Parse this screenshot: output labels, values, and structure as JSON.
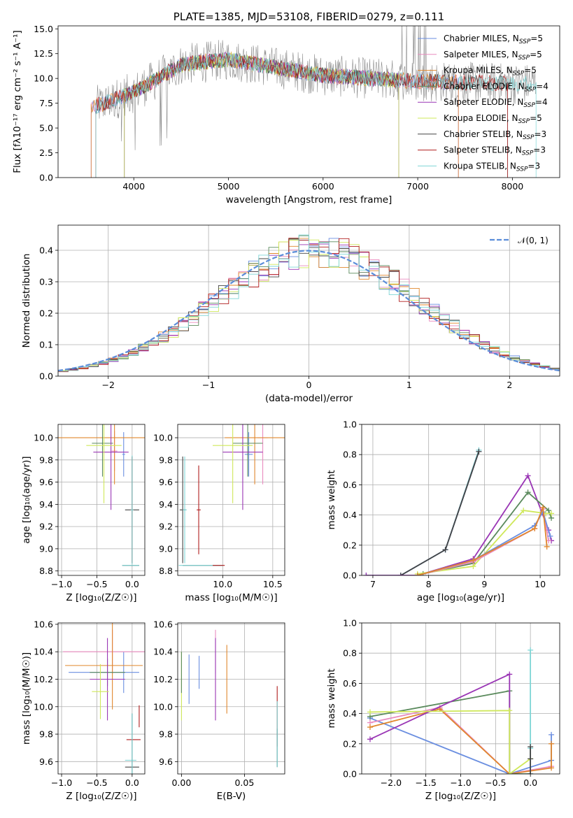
{
  "chart_data": [
    {
      "type": "line",
      "title": "PLATE=1385, MJD=53108, FIBERID=0279, z=0.111",
      "xlabel": "wavelength [Angstrom, rest frame]",
      "ylabel": "Flux [fλ10⁻¹⁷ erg cm⁻² s⁻¹ A⁻¹]",
      "xlim": [
        3200,
        8500
      ],
      "ylim": [
        0,
        15.3
      ],
      "xticks": [
        "4000",
        "5000",
        "6000",
        "7000",
        "8000"
      ],
      "yticks": [
        "0.0",
        "2.5",
        "5.0",
        "7.5",
        "10.0",
        "12.5",
        "15.0"
      ],
      "grid": false,
      "legend_position": "top-right",
      "data_range": [
        3600,
        8250
      ],
      "series": [
        {
          "name": "Chabrier MILES, N",
          "sub": "SSP",
          "suffix": "=5",
          "color": "#6a8ee0",
          "range": [
            3550,
            7430
          ]
        },
        {
          "name": "Salpeter MILES, N",
          "sub": "SSP",
          "suffix": "=5",
          "color": "#e98bbf",
          "range": [
            3550,
            7430
          ]
        },
        {
          "name": "Kroupa MILES, N",
          "sub": "SSP",
          "suffix": "=5",
          "color": "#e0872d",
          "range": [
            3550,
            7430
          ]
        },
        {
          "name": "Chabrier ELODIE, N",
          "sub": "SSP",
          "suffix": "=4",
          "color": "#5a8a5c",
          "range": [
            3900,
            6800
          ]
        },
        {
          "name": "Salpeter ELODIE, N",
          "sub": "SSP",
          "suffix": "=4",
          "color": "#9a36b5",
          "range": [
            3900,
            6800
          ]
        },
        {
          "name": "Kroupa ELODIE, N",
          "sub": "SSP",
          "suffix": "=5",
          "color": "#cfe85a",
          "range": [
            3900,
            6800
          ]
        },
        {
          "name": "Chabrier STELIB, N",
          "sub": "SSP",
          "suffix": "=3",
          "color": "#444444",
          "range": [
            3600,
            7950
          ]
        },
        {
          "name": "Salpeter STELIB, N",
          "sub": "SSP",
          "suffix": "=3",
          "color": "#b01e1e",
          "range": [
            3600,
            7950
          ]
        },
        {
          "name": "Kroupa STELIB, N",
          "sub": "SSP",
          "suffix": "=3",
          "color": "#7fd6d6",
          "range": [
            3600,
            8250
          ]
        }
      ],
      "data_color": "#8c8c8c"
    },
    {
      "type": "line",
      "xlabel": "(data-model)/error",
      "ylabel": "Normed distribution",
      "xlim": [
        -2.5,
        2.5
      ],
      "ylim": [
        0,
        0.48
      ],
      "xticks": [
        "−2",
        "−1",
        "0",
        "1",
        "2"
      ],
      "yticks": [
        "0.0",
        "0.1",
        "0.2",
        "0.3",
        "0.4"
      ],
      "grid": true,
      "legend_position": "top-right",
      "legend": "𝒩(0, 1)",
      "normal_color": "#5b8dd9"
    },
    {
      "type": "scatter",
      "xlabel": "Z [log₁₀(Z/Z☉)]",
      "ylabel": "age  [log₁₀(age/yr)]",
      "xlim": [
        -1.05,
        0.18
      ],
      "ylim": [
        8.76,
        10.12
      ],
      "xticks": [
        "−1.0",
        "−0.5",
        "0.0"
      ],
      "yticks": [
        "8.8",
        "9.0",
        "9.2",
        "9.4",
        "9.6",
        "9.8",
        "10.0"
      ],
      "grid": true,
      "points": [
        {
          "color": "#6a8ee0",
          "x": -0.12,
          "y": 9.85,
          "ex": 0.02,
          "ey": 0.2
        },
        {
          "color": "#e98bbf",
          "x": -0.25,
          "y": 9.88,
          "ex": 0.04,
          "ey": 0.18
        },
        {
          "color": "#e0872d",
          "x": -0.25,
          "y": 10.0,
          "ex": 0.95,
          "ey": 0.42
        },
        {
          "color": "#5a8a5c",
          "x": -0.42,
          "y": 9.95,
          "ex": 0.15,
          "ey": 0.3
        },
        {
          "color": "#9a36b5",
          "x": -0.3,
          "y": 9.87,
          "ex": 0.25,
          "ey": 0.52
        },
        {
          "color": "#cfe85a",
          "x": -0.4,
          "y": 9.93,
          "ex": 0.25,
          "ey": 0.52
        },
        {
          "color": "#444444",
          "x": 0.0,
          "y": 9.35,
          "ex": 0.1,
          "ey": 0.48
        },
        {
          "color": "#b01e1e",
          "x": 0.0,
          "y": 9.35,
          "ex": 0.02,
          "ey": 0.48
        },
        {
          "color": "#7fd6d6",
          "x": 0.0,
          "y": 9.35,
          "ex": 0.02,
          "ey": 0.49
        },
        {
          "color": "#444444",
          "x": -0.02,
          "y": 8.85,
          "ex": 0.12,
          "ey": 0.0
        },
        {
          "color": "#7fd6d6",
          "x": -0.02,
          "y": 8.85,
          "ex": 0.12,
          "ey": 0.0
        }
      ]
    },
    {
      "type": "scatter",
      "xlabel": "mass [log₁₀(M/M☉)]",
      "xlim": [
        9.55,
        10.62
      ],
      "ylim": [
        8.76,
        10.12
      ],
      "xticks": [
        "10.0",
        "10.5"
      ],
      "yticks": [
        "8.8",
        "9.0",
        "9.2",
        "9.4",
        "9.6",
        "9.8",
        "10.0"
      ],
      "grid": true,
      "points": [
        {
          "color": "#6a8ee0",
          "x": 10.26,
          "y": 9.85,
          "ex": 0.04,
          "ey": 0.2
        },
        {
          "color": "#e98bbf",
          "x": 10.4,
          "y": 10.0,
          "ex": 0.05,
          "ey": 0.42
        },
        {
          "color": "#e0872d",
          "x": 10.32,
          "y": 10.0,
          "ex": 0.3,
          "ey": 0.42
        },
        {
          "color": "#5a8a5c",
          "x": 10.25,
          "y": 9.95,
          "ex": 0.15,
          "ey": 0.3
        },
        {
          "color": "#9a36b5",
          "x": 10.2,
          "y": 9.87,
          "ex": 0.2,
          "ey": 0.52
        },
        {
          "color": "#cfe85a",
          "x": 10.1,
          "y": 9.93,
          "ex": 0.2,
          "ey": 0.52
        },
        {
          "color": "#444444",
          "x": 9.6,
          "y": 9.35,
          "ex": 0.03,
          "ey": 0.48
        },
        {
          "color": "#b01e1e",
          "x": 9.76,
          "y": 9.35,
          "ex": 0.02,
          "ey": 0.4
        },
        {
          "color": "#7fd6d6",
          "x": 9.62,
          "y": 9.35,
          "ex": 0.02,
          "ey": 0.48
        },
        {
          "color": "#444444",
          "x": 9.8,
          "y": 8.85,
          "ex": 0.2,
          "ey": 0.0
        },
        {
          "color": "#7fd6d6",
          "x": 9.78,
          "y": 8.85,
          "ex": 0.22,
          "ey": 0.0
        },
        {
          "color": "#b01e1e",
          "x": 9.96,
          "y": 8.85,
          "ex": 0.06,
          "ey": 0.0
        }
      ]
    },
    {
      "type": "line",
      "xlabel": "age  [log₁₀(age/yr)]",
      "ylabel": "mass weight",
      "xlim": [
        6.8,
        10.35
      ],
      "ylim": [
        0,
        1.0
      ],
      "xticks": [
        "7",
        "8",
        "9",
        "10"
      ],
      "yticks": [
        "0.0",
        "0.2",
        "0.4",
        "0.6",
        "0.8",
        "1.0"
      ],
      "grid": true,
      "series": [
        {
          "color": "#7fd6d6",
          "x": [
            6.88,
            7.5,
            8.3,
            8.9
          ],
          "y": [
            0.0,
            0.0,
            0.17,
            0.83
          ]
        },
        {
          "color": "#6a8ee0",
          "x": [
            7.5,
            8.3,
            8.9
          ],
          "y": [
            0.0,
            0.17,
            0.82
          ]
        },
        {
          "color": "#444444",
          "x": [
            7.5,
            8.3,
            8.9
          ],
          "y": [
            0.0,
            0.17,
            0.82
          ]
        },
        {
          "color": "#9a36b5",
          "x": [
            6.88,
            7.8,
            8.8,
            9.78,
            10.15,
            10.2
          ],
          "y": [
            0.0,
            0.0,
            0.11,
            0.66,
            0.3,
            0.23
          ]
        },
        {
          "color": "#5a8a5c",
          "x": [
            7.9,
            8.8,
            9.78,
            10.15,
            10.2
          ],
          "y": [
            0.01,
            0.08,
            0.55,
            0.43,
            0.38
          ]
        },
        {
          "color": "#cfe85a",
          "x": [
            7.8,
            8.8,
            9.7,
            10.1,
            10.2
          ],
          "y": [
            0.01,
            0.06,
            0.43,
            0.41,
            0.41
          ]
        },
        {
          "color": "#e98bbf",
          "x": [
            7.8,
            8.8,
            9.9,
            10.05,
            10.15
          ],
          "y": [
            0.0,
            0.09,
            0.31,
            0.44,
            0.23
          ]
        },
        {
          "color": "#6a8ee0",
          "x": [
            7.8,
            8.8,
            9.9,
            10.05,
            10.18
          ],
          "y": [
            0.0,
            0.1,
            0.33,
            0.42,
            0.26
          ]
        },
        {
          "color": "#e0872d",
          "x": [
            7.8,
            8.8,
            9.9,
            10.05,
            10.12
          ],
          "y": [
            0.0,
            0.1,
            0.31,
            0.45,
            0.19
          ]
        }
      ]
    },
    {
      "type": "scatter",
      "xlabel": "Z [log₁₀(Z/Z☉)]",
      "ylabel": "mass [log₁₀(M/M☉)]",
      "xlim": [
        -1.05,
        0.18
      ],
      "ylim": [
        9.51,
        10.61
      ],
      "xticks": [
        "−1.0",
        "−0.5",
        "0.0"
      ],
      "yticks": [
        "9.6",
        "9.8",
        "10.0",
        "10.2",
        "10.4",
        "10.6"
      ],
      "grid": true,
      "points": [
        {
          "color": "#6a8ee0",
          "x": -0.4,
          "y": 10.25,
          "ex": 0.5,
          "ey": 0.0
        },
        {
          "color": "#6a8ee0",
          "x": -0.12,
          "y": 10.25,
          "ex": 0.0,
          "ey": 0.15
        },
        {
          "color": "#e98bbf",
          "x": -0.28,
          "y": 10.4,
          "ex": 0.7,
          "ey": 0.16
        },
        {
          "color": "#e0872d",
          "x": -0.4,
          "y": 10.3,
          "ex": 0.55,
          "ey": 0.0
        },
        {
          "color": "#e0872d",
          "x": -0.28,
          "y": 10.3,
          "ex": 0.0,
          "ey": 0.32
        },
        {
          "color": "#5a8a5c",
          "x": -0.35,
          "y": 10.25,
          "ex": 0.25,
          "ey": 0.1
        },
        {
          "color": "#9a36b5",
          "x": -0.35,
          "y": 10.2,
          "ex": 0.25,
          "ey": 0.3
        },
        {
          "color": "#cfe85a",
          "x": -0.45,
          "y": 10.11,
          "ex": 0.12,
          "ey": 0.2
        },
        {
          "color": "#b01e1e",
          "x": 0.02,
          "y": 9.76,
          "ex": 0.1,
          "ey": 0.0
        },
        {
          "color": "#b01e1e",
          "x": 0.1,
          "y": 9.93,
          "ex": 0.0,
          "ey": 0.08
        },
        {
          "color": "#7fd6d6",
          "x": -0.02,
          "y": 9.61,
          "ex": 0.08,
          "ey": 0.0
        },
        {
          "color": "#444444",
          "x": 0.0,
          "y": 9.56,
          "ex": 0.1,
          "ey": 0.0
        },
        {
          "color": "#444444",
          "x": 0.0,
          "y": 9.7,
          "ex": 0.0,
          "ey": 0.25
        },
        {
          "color": "#7fd6d6",
          "x": 0.0,
          "y": 9.7,
          "ex": 0.0,
          "ey": 0.25
        }
      ]
    },
    {
      "type": "scatter",
      "xlabel": "E(B-V)",
      "xlim": [
        -0.003,
        0.082
      ],
      "ylim": [
        9.51,
        10.61
      ],
      "xticks": [
        "0.00",
        "0.05"
      ],
      "yticks": [
        "9.6",
        "9.8",
        "10.0",
        "10.2",
        "10.4",
        "10.6"
      ],
      "grid": true,
      "points": [
        {
          "color": "#cfe85a",
          "x": 0.0,
          "y": 10.15,
          "ey": 0.25
        },
        {
          "color": "#5a8a5c",
          "x": 0.0,
          "y": 10.25,
          "ey": 0.15
        },
        {
          "color": "#6a8ee0",
          "x": 0.006,
          "y": 10.2,
          "ey": 0.18
        },
        {
          "color": "#6a8ee0",
          "x": 0.014,
          "y": 10.25,
          "ey": 0.12
        },
        {
          "color": "#e98bbf",
          "x": 0.027,
          "y": 10.4,
          "ey": 0.16
        },
        {
          "color": "#9a36b5",
          "x": 0.027,
          "y": 10.2,
          "ey": 0.3
        },
        {
          "color": "#e0872d",
          "x": 0.036,
          "y": 10.2,
          "ey": 0.25
        },
        {
          "color": "#b01e1e",
          "x": 0.076,
          "y": 9.93,
          "ey": 0.22
        },
        {
          "color": "#444444",
          "x": 0.076,
          "y": 9.7,
          "ey": 0.14
        },
        {
          "color": "#7fd6d6",
          "x": 0.076,
          "y": 9.8,
          "ey": 0.24
        }
      ]
    },
    {
      "type": "line",
      "xlabel": "Z [log₁₀(Z/Z☉)]",
      "ylabel": "mass weight",
      "xlim": [
        -2.42,
        0.42
      ],
      "ylim": [
        0,
        1.0
      ],
      "xticks": [
        "−2.0",
        "−1.5",
        "−1.0",
        "−0.5",
        "0.0"
      ],
      "yticks": [
        "0.0",
        "0.2",
        "0.4",
        "0.6",
        "0.8",
        "1.0"
      ],
      "grid": true,
      "series": [
        {
          "color": "#6a8ee0",
          "x": [
            -2.3,
            -0.3,
            0.3,
            0.3
          ],
          "y": [
            0.37,
            0.0,
            0.09,
            0.26
          ]
        },
        {
          "color": "#e98bbf",
          "x": [
            -2.3,
            -1.3,
            -0.3,
            0.3
          ],
          "y": [
            0.34,
            0.44,
            0.0,
            0.05
          ]
        },
        {
          "color": "#e0872d",
          "x": [
            -2.3,
            -1.3,
            -0.3,
            0.3,
            0.3
          ],
          "y": [
            0.31,
            0.43,
            0.0,
            0.04,
            0.2
          ]
        },
        {
          "color": "#5a8a5c",
          "x": [
            -2.3,
            -0.3,
            -0.3,
            0.0
          ],
          "y": [
            0.38,
            0.55,
            0.0,
            0.0
          ]
        },
        {
          "color": "#9a36b5",
          "x": [
            -2.3,
            -0.3,
            -0.3
          ],
          "y": [
            0.23,
            0.66,
            0.0
          ]
        },
        {
          "color": "#cfe85a",
          "x": [
            -2.3,
            -0.3,
            -0.3,
            0.0
          ],
          "y": [
            0.41,
            0.42,
            0.0,
            0.1
          ]
        },
        {
          "color": "#7fd6d6",
          "x": [
            0.0,
            0.0,
            0.0
          ],
          "y": [
            0.0,
            0.17,
            0.82
          ]
        },
        {
          "color": "#444444",
          "x": [
            0.0,
            0.0,
            0.0
          ],
          "y": [
            0.0,
            0.1,
            0.18
          ]
        }
      ]
    }
  ]
}
